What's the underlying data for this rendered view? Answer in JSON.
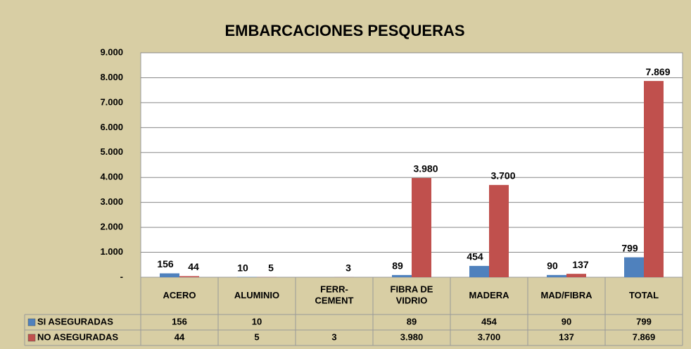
{
  "chart_data": {
    "type": "bar",
    "title": "EMBARCACIONES PESQUERAS",
    "categories": [
      "ACERO",
      "ALUMINIO",
      "FERR-\nCEMENT",
      "FIBRA DE\nVIDRIO",
      "MADERA",
      "MAD/FIBRA",
      "TOTAL"
    ],
    "series": [
      {
        "name": "SI ASEGURADAS",
        "color": "#4f81bd",
        "values": [
          156,
          10,
          null,
          89,
          454,
          90,
          799
        ]
      },
      {
        "name": "NO ASEGURADAS",
        "color": "#c0504d",
        "values": [
          44,
          5,
          3,
          3980,
          3700,
          137,
          7869
        ],
        "value_labels": [
          "44",
          "5",
          "3",
          "3.980",
          "3.700",
          "137",
          "7.869"
        ]
      }
    ],
    "ylim": [
      0,
      9000
    ],
    "yticks": [
      {
        "value": 0,
        "label": "-"
      },
      {
        "value": 1000,
        "label": "1.000"
      },
      {
        "value": 2000,
        "label": "2.000"
      },
      {
        "value": 3000,
        "label": "3.000"
      },
      {
        "value": 4000,
        "label": "4.000"
      },
      {
        "value": 5000,
        "label": "5.000"
      },
      {
        "value": 6000,
        "label": "6.000"
      },
      {
        "value": 7000,
        "label": "7.000"
      },
      {
        "value": 8000,
        "label": "8.000"
      },
      {
        "value": 9000,
        "label": "9.000"
      }
    ],
    "grid": true
  }
}
